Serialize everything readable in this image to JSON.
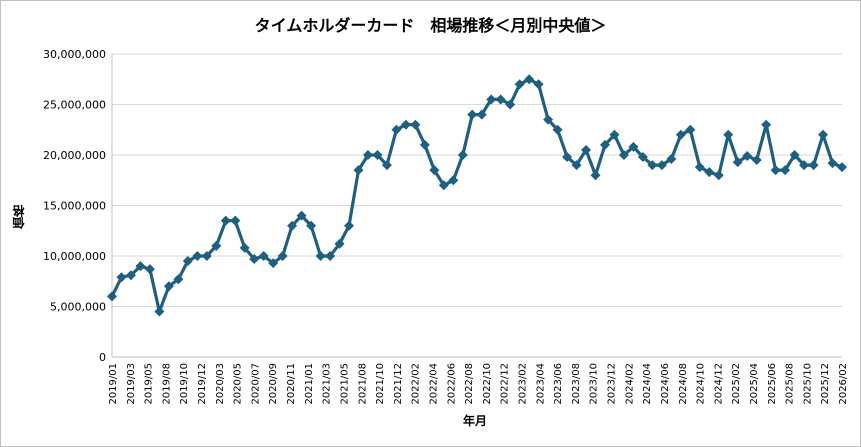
{
  "chart_data": {
    "type": "line",
    "title": "タイムホルダーカード　相場推移＜月別中央値＞",
    "xlabel": "年月",
    "ylabel": "価格",
    "ylim": [
      0,
      30000000
    ],
    "y_ticks": [
      "0",
      "5,000,000",
      "10,000,000",
      "15,000,000",
      "20,000,000",
      "25,000,000",
      "30,000,000"
    ],
    "grid": true,
    "legend": "none",
    "line_color": "#1f5f7f",
    "marker": "diamond",
    "x_tick_labels": [
      "2019/01",
      "2019/03",
      "2019/05",
      "2019/08",
      "2019/10",
      "2019/12",
      "2020/03",
      "2020/05",
      "2020/07",
      "2020/09",
      "2020/11",
      "2021/01",
      "2021/03",
      "2021/05",
      "2021/08",
      "2021/10",
      "2021/12",
      "2022/02",
      "2022/04",
      "2022/06",
      "2022/08",
      "2022/10",
      "2022/12",
      "2023/02",
      "2023/04",
      "2023/06",
      "2023/08",
      "2023/10",
      "2023/12",
      "2024/02",
      "2024/04",
      "2024/06",
      "2024/08",
      "2024/10",
      "2024/12",
      "2025/02",
      "2025/04",
      "2025/06",
      "2025/08",
      "2025/10",
      "2025/12",
      "2026/02"
    ],
    "series": [
      {
        "values": [
          6000000,
          7900000,
          8100000,
          9000000,
          8700000,
          4500000,
          7000000,
          7700000,
          9500000,
          10000000,
          10000000,
          11000000,
          13500000,
          13500000,
          10800000,
          9700000,
          10000000,
          9300000,
          10000000,
          13000000,
          14000000,
          13000000,
          10000000,
          10000000,
          11200000,
          13000000,
          18500000,
          20000000,
          20000000,
          19000000,
          22500000,
          23000000,
          23000000,
          21000000,
          18500000,
          17000000,
          17500000,
          20000000,
          24000000,
          24000000,
          25500000,
          25500000,
          25000000,
          27000000,
          27500000,
          27000000,
          23500000,
          22500000,
          19800000,
          19000000,
          20500000,
          18000000,
          21000000,
          22000000,
          20000000,
          20800000,
          19800000,
          19000000,
          19000000,
          19600000,
          22000000,
          22500000,
          18800000,
          18300000,
          18000000,
          22000000,
          19300000,
          19900000,
          19500000,
          23000000,
          18500000,
          18500000,
          20000000,
          19000000,
          19000000,
          22000000,
          19200000,
          18800000
        ]
      }
    ]
  }
}
